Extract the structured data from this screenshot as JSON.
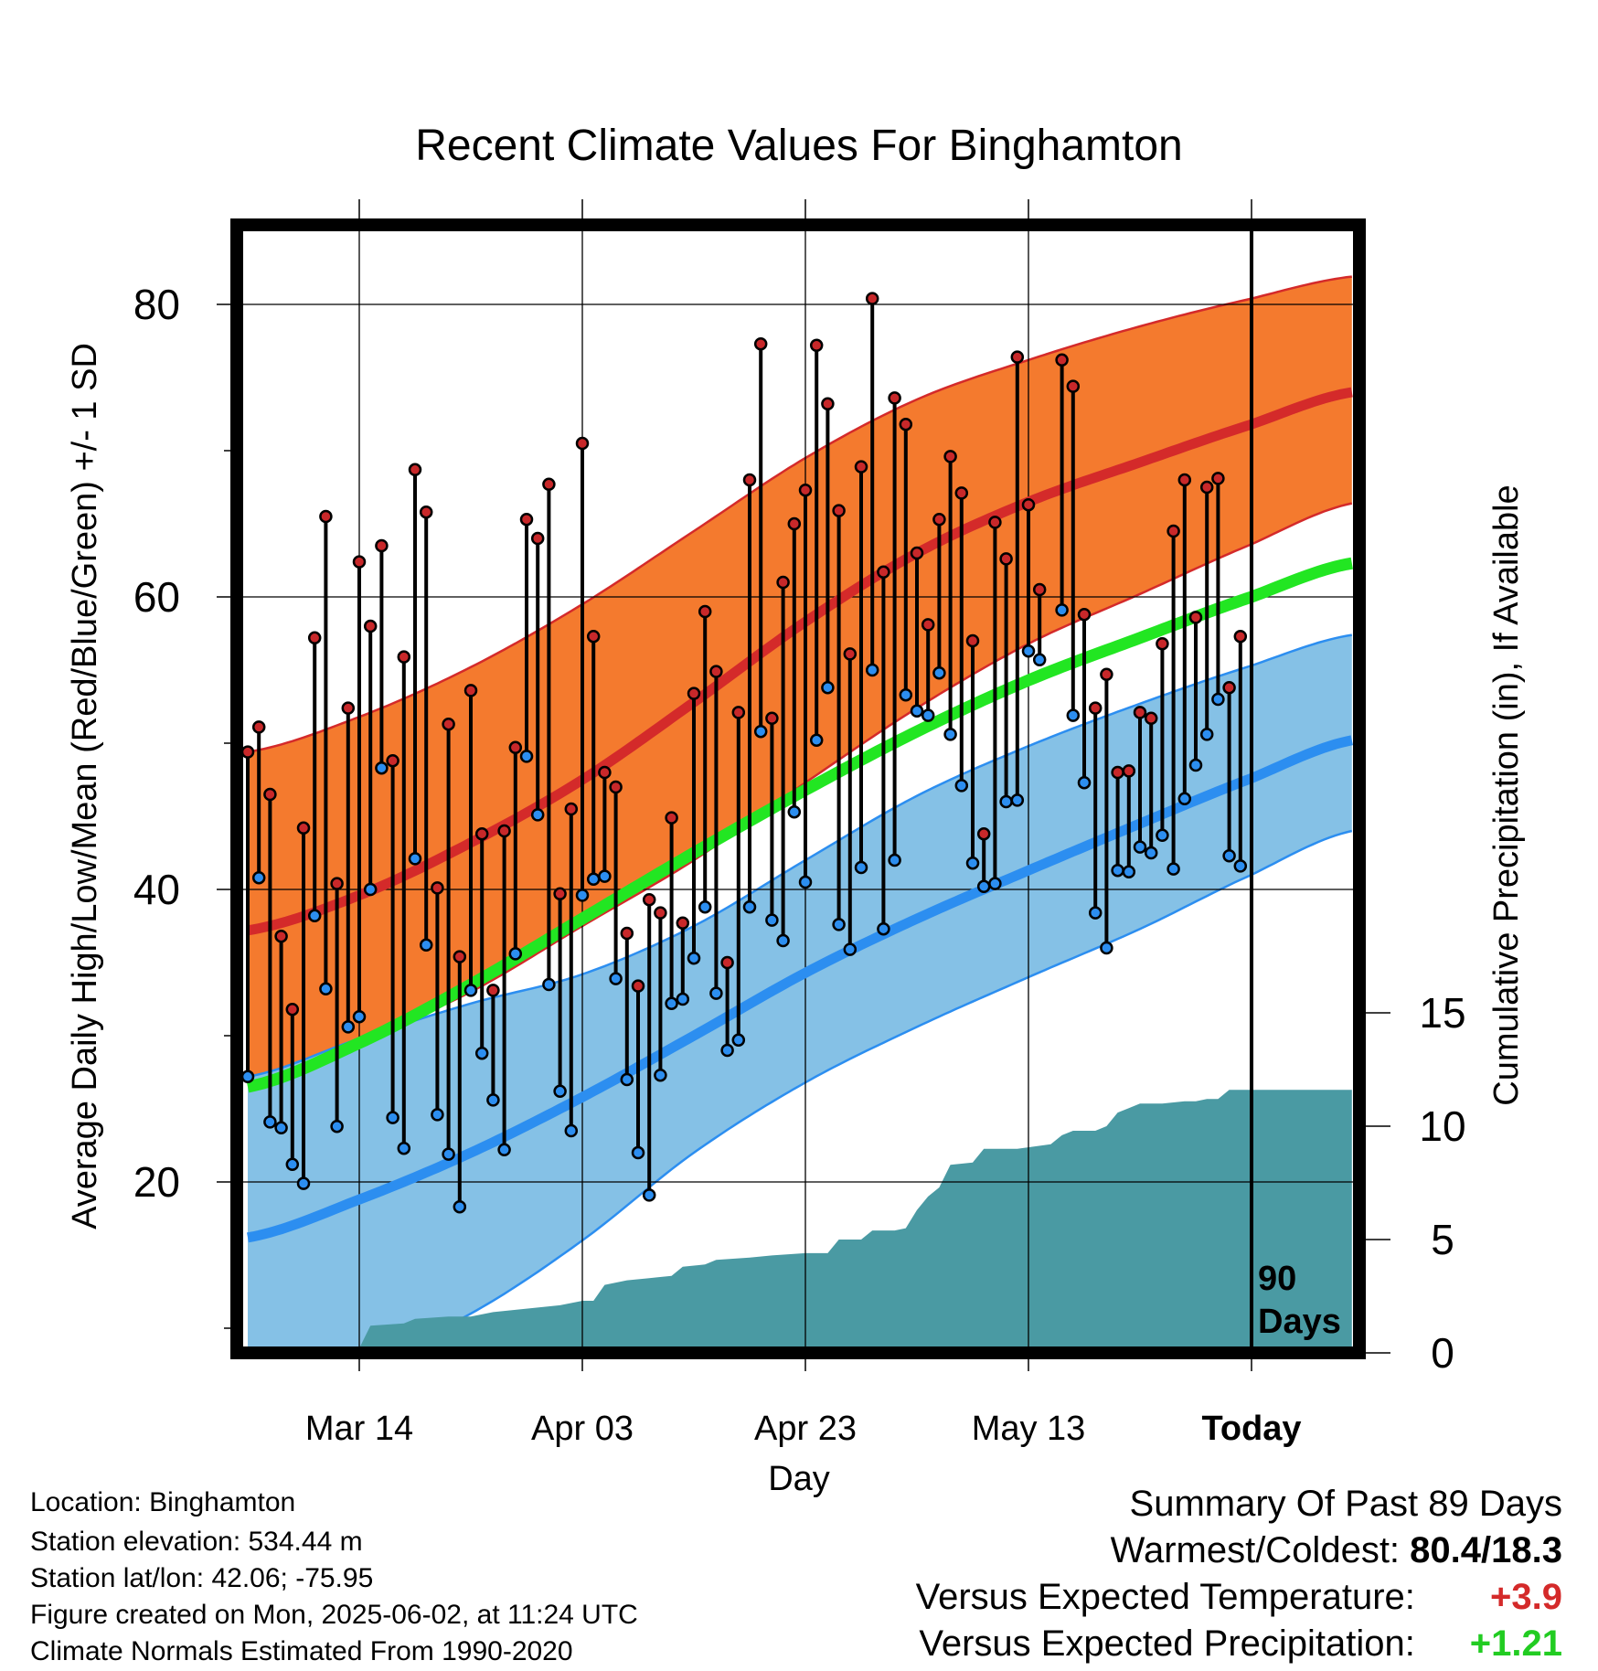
{
  "chart_data": {
    "type": "line",
    "title": "Recent Climate Values For Binghamton",
    "xlabel": "Day",
    "ylabel_left": "Average Daily High/Low/Mean (Red/Blue/Green) +/- 1 SD",
    "ylabel_right": "Cumulative Precipitation (in), If Available",
    "x_range_days": [
      -90,
      9
    ],
    "x_ticks": [
      {
        "day": -80,
        "label": "Mar 14"
      },
      {
        "day": -60,
        "label": "Apr 03"
      },
      {
        "day": -40,
        "label": "Apr 23"
      },
      {
        "day": -20,
        "label": "May 13"
      },
      {
        "day": 0,
        "label": "Today"
      }
    ],
    "y_left_range": [
      9,
      86
    ],
    "y_left_ticks": [
      20,
      40,
      60,
      80
    ],
    "y_left_minor_ticks": [
      10,
      30,
      50,
      70
    ],
    "y_right_range": [
      0,
      17.5
    ],
    "y_right_ticks": [
      0,
      5,
      10,
      15
    ],
    "today_marker": "90\nDays",
    "normal_high": [
      [
        -90,
        37.2
      ],
      [
        -80,
        39.6
      ],
      [
        -70,
        43.2
      ],
      [
        -60,
        47.5
      ],
      [
        -50,
        52.8
      ],
      [
        -40,
        58.3
      ],
      [
        -30,
        63.0
      ],
      [
        -20,
        66.5
      ],
      [
        -10,
        69.2
      ],
      [
        0,
        71.8
      ],
      [
        9,
        74.0
      ]
    ],
    "normal_high_upper": [
      [
        -90,
        49.4
      ],
      [
        -80,
        51.8
      ],
      [
        -70,
        55.2
      ],
      [
        -60,
        59.5
      ],
      [
        -50,
        64.5
      ],
      [
        -40,
        69.5
      ],
      [
        -30,
        73.5
      ],
      [
        -20,
        76.2
      ],
      [
        -10,
        78.5
      ],
      [
        0,
        80.4
      ],
      [
        9,
        81.9
      ]
    ],
    "normal_high_lower": [
      [
        -90,
        27.2
      ],
      [
        -80,
        29.7
      ],
      [
        -70,
        33.0
      ],
      [
        -60,
        37.5
      ],
      [
        -50,
        42.0
      ],
      [
        -40,
        47.3
      ],
      [
        -30,
        52.4
      ],
      [
        -20,
        56.8
      ],
      [
        -10,
        60.2
      ],
      [
        0,
        63.6
      ],
      [
        9,
        66.4
      ]
    ],
    "normal_mean": [
      [
        -90,
        26.5
      ],
      [
        -80,
        29.5
      ],
      [
        -70,
        33.5
      ],
      [
        -60,
        38.0
      ],
      [
        -50,
        42.5
      ],
      [
        -40,
        46.8
      ],
      [
        -30,
        50.8
      ],
      [
        -20,
        54.3
      ],
      [
        -10,
        57.2
      ],
      [
        0,
        60.0
      ],
      [
        9,
        62.3
      ]
    ],
    "normal_low": [
      [
        -90,
        16.2
      ],
      [
        -80,
        18.8
      ],
      [
        -70,
        22.0
      ],
      [
        -60,
        25.8
      ],
      [
        -50,
        30.0
      ],
      [
        -40,
        34.3
      ],
      [
        -30,
        38.0
      ],
      [
        -20,
        41.3
      ],
      [
        -10,
        44.5
      ],
      [
        0,
        47.6
      ],
      [
        9,
        50.2
      ]
    ],
    "normal_low_upper": [
      [
        -90,
        27.2
      ],
      [
        -80,
        29.8
      ],
      [
        -70,
        32.2
      ],
      [
        -60,
        34.2
      ],
      [
        -50,
        37.5
      ],
      [
        -40,
        42.0
      ],
      [
        -30,
        46.4
      ],
      [
        -20,
        49.8
      ],
      [
        -10,
        52.7
      ],
      [
        0,
        55.3
      ],
      [
        9,
        57.4
      ]
    ],
    "normal_low_lower": [
      [
        -90,
        4.0
      ],
      [
        -80,
        7.6
      ],
      [
        -70,
        11.0
      ],
      [
        -60,
        16.0
      ],
      [
        -50,
        22.0
      ],
      [
        -40,
        26.8
      ],
      [
        -30,
        30.6
      ],
      [
        -20,
        34.0
      ],
      [
        -10,
        37.3
      ],
      [
        0,
        41.0
      ],
      [
        9,
        44.0
      ]
    ],
    "daily_high_low": [
      [
        -90,
        49.4,
        27.2
      ],
      [
        -89,
        51.1,
        40.8
      ],
      [
        -88,
        46.5,
        24.1
      ],
      [
        -87,
        36.8,
        23.7
      ],
      [
        -86,
        31.8,
        21.2
      ],
      [
        -85,
        44.2,
        19.9
      ],
      [
        -84,
        57.2,
        38.2
      ],
      [
        -83,
        65.5,
        33.2
      ],
      [
        -82,
        40.4,
        23.8
      ],
      [
        -81,
        52.4,
        30.6
      ],
      [
        -80,
        62.4,
        31.3
      ],
      [
        -79,
        58.0,
        40.0
      ],
      [
        -78,
        63.5,
        48.3
      ],
      [
        -77,
        48.8,
        24.4
      ],
      [
        -76,
        55.9,
        22.3
      ],
      [
        -75,
        68.7,
        42.1
      ],
      [
        -74,
        65.8,
        36.2
      ],
      [
        -73,
        40.1,
        24.6
      ],
      [
        -72,
        51.3,
        21.9
      ],
      [
        -71,
        35.4,
        18.3
      ],
      [
        -70,
        53.6,
        33.1
      ],
      [
        -69,
        43.8,
        28.8
      ],
      [
        -68,
        33.1,
        25.6
      ],
      [
        -67,
        44.0,
        22.2
      ],
      [
        -66,
        49.7,
        35.6
      ],
      [
        -65,
        65.3,
        49.1
      ],
      [
        -64,
        64.0,
        45.1
      ],
      [
        -63,
        67.7,
        33.5
      ],
      [
        -62,
        39.7,
        26.2
      ],
      [
        -61,
        45.5,
        23.5
      ],
      [
        -60,
        70.5,
        39.6
      ],
      [
        -59,
        57.3,
        40.7
      ],
      [
        -58,
        48.0,
        40.9
      ],
      [
        -57,
        47.0,
        33.9
      ],
      [
        -56,
        37.0,
        27.0
      ],
      [
        -55,
        33.4,
        22.0
      ],
      [
        -54,
        39.3,
        19.1
      ],
      [
        -53,
        38.4,
        27.3
      ],
      [
        -52,
        44.9,
        32.2
      ],
      [
        -51,
        37.7,
        32.5
      ],
      [
        -50,
        53.4,
        35.3
      ],
      [
        -49,
        59.0,
        38.8
      ],
      [
        -48,
        54.9,
        32.9
      ],
      [
        -47,
        35.0,
        29.0
      ],
      [
        -46,
        52.1,
        29.7
      ],
      [
        -45,
        68.0,
        38.8
      ],
      [
        -44,
        77.3,
        50.8
      ],
      [
        -43,
        51.7,
        37.9
      ],
      [
        -42,
        61.0,
        36.5
      ],
      [
        -41,
        65.0,
        45.3
      ],
      [
        -40,
        67.3,
        40.5
      ],
      [
        -39,
        77.2,
        50.2
      ],
      [
        -38,
        73.2,
        53.8
      ],
      [
        -37,
        65.9,
        37.6
      ],
      [
        -36,
        56.1,
        35.9
      ],
      [
        -35,
        68.9,
        41.5
      ],
      [
        -34,
        80.4,
        55.0
      ],
      [
        -33,
        61.7,
        37.3
      ],
      [
        -32,
        73.6,
        42.0
      ],
      [
        -31,
        71.8,
        53.3
      ],
      [
        -30,
        63.0,
        52.2
      ],
      [
        -29,
        58.1,
        51.9
      ],
      [
        -28,
        65.3,
        54.8
      ],
      [
        -27,
        69.6,
        50.6
      ],
      [
        -26,
        67.1,
        47.1
      ],
      [
        -25,
        57.0,
        41.8
      ],
      [
        -24,
        43.8,
        40.2
      ],
      [
        -23,
        65.1,
        40.4
      ],
      [
        -22,
        62.6,
        46.0
      ],
      [
        -21,
        76.4,
        46.1
      ],
      [
        -20,
        66.3,
        56.3
      ],
      [
        -19,
        60.5,
        55.7
      ],
      [
        -17,
        76.2,
        59.1
      ],
      [
        -16,
        74.4,
        51.9
      ],
      [
        -15,
        58.8,
        47.3
      ],
      [
        -14,
        52.4,
        38.4
      ],
      [
        -13,
        54.7,
        36.0
      ],
      [
        -12,
        48.0,
        41.3
      ],
      [
        -11,
        48.1,
        41.2
      ],
      [
        -10,
        52.1,
        42.9
      ],
      [
        -9,
        51.7,
        42.5
      ],
      [
        -8,
        56.8,
        43.7
      ],
      [
        -7,
        64.5,
        41.4
      ],
      [
        -6,
        68.0,
        46.2
      ],
      [
        -5,
        58.6,
        48.5
      ],
      [
        -4,
        67.5,
        50.6
      ],
      [
        -3,
        68.1,
        53.0
      ],
      [
        -2,
        53.8,
        42.3
      ],
      [
        -1,
        57.3,
        41.6
      ]
    ],
    "cumulative_precip": [
      [
        -90,
        0.0
      ],
      [
        -89,
        0.2
      ],
      [
        -80,
        0.2
      ],
      [
        -79,
        1.2
      ],
      [
        -76,
        1.3
      ],
      [
        -75,
        1.5
      ],
      [
        -72,
        1.6
      ],
      [
        -70,
        1.6
      ],
      [
        -68,
        1.8
      ],
      [
        -66,
        1.9
      ],
      [
        -64,
        2.0
      ],
      [
        -62,
        2.1
      ],
      [
        -60,
        2.3
      ],
      [
        -59,
        2.3
      ],
      [
        -58,
        3.0
      ],
      [
        -56,
        3.2
      ],
      [
        -54,
        3.3
      ],
      [
        -52,
        3.4
      ],
      [
        -51,
        3.8
      ],
      [
        -49,
        3.9
      ],
      [
        -48,
        4.1
      ],
      [
        -45,
        4.2
      ],
      [
        -43,
        4.3
      ],
      [
        -40,
        4.4
      ],
      [
        -38,
        4.4
      ],
      [
        -37,
        5.0
      ],
      [
        -35,
        5.0
      ],
      [
        -34,
        5.4
      ],
      [
        -32,
        5.4
      ],
      [
        -31,
        5.5
      ],
      [
        -30,
        6.3
      ],
      [
        -29,
        6.9
      ],
      [
        -28,
        7.3
      ],
      [
        -27,
        8.3
      ],
      [
        -25,
        8.4
      ],
      [
        -24,
        9.0
      ],
      [
        -21,
        9.0
      ],
      [
        -18,
        9.2
      ],
      [
        -17,
        9.6
      ],
      [
        -16,
        9.8
      ],
      [
        -14,
        9.8
      ],
      [
        -13,
        10.0
      ],
      [
        -12,
        10.6
      ],
      [
        -11,
        10.8
      ],
      [
        -10,
        11.0
      ],
      [
        -8,
        11.0
      ],
      [
        -6,
        11.1
      ],
      [
        -5,
        11.1
      ],
      [
        -4,
        11.2
      ],
      [
        -3,
        11.2
      ],
      [
        -2,
        11.6
      ],
      [
        0,
        11.6
      ],
      [
        9,
        11.6
      ]
    ],
    "colors": {
      "high_band": "#f47a2e",
      "high_mean": "#d42a2a",
      "low_band": "#85c1e6",
      "low_mean": "#2c8ef0",
      "mean": "#22e622",
      "precip": "#4a9aa3",
      "high_dot": "#c8282a",
      "low_dot": "#2c8ef0"
    },
    "grid": true
  },
  "footer": {
    "location": "Location: Binghamton",
    "elevation": "Station elevation: 534.44 m",
    "latlon": "Station lat/lon: 42.06; -75.95",
    "created": "Figure created on Mon, 2025-06-02, at 11:24 UTC",
    "normals": "Climate Normals Estimated From 1990-2020"
  },
  "summary": {
    "title": "Summary Of Past 89 Days",
    "warmest_coldest_label": "Warmest/Coldest:",
    "warmest_coldest_value": "80.4/18.3",
    "temp_label": "Versus Expected Temperature:",
    "temp_value": "+3.9",
    "temp_color": "#d42a2a",
    "precip_label": "Versus Expected Precipitation:",
    "precip_value": "+1.21",
    "precip_color": "#22cc22"
  }
}
